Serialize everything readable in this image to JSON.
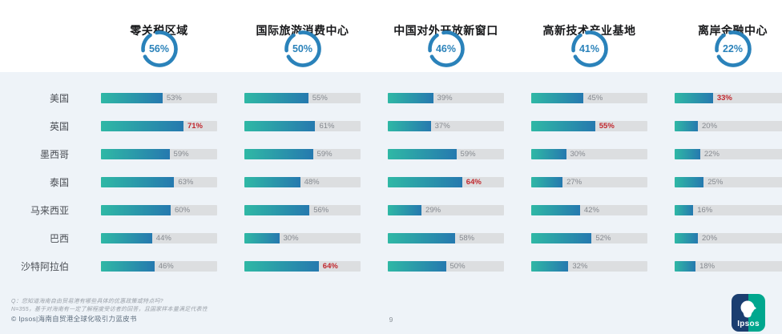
{
  "chart_data": {
    "type": "bar",
    "orientation": "horizontal",
    "unit": "%",
    "xlim": [
      0,
      100
    ],
    "grid": false,
    "legend_position": "none",
    "categories": [
      "美国",
      "英国",
      "墨西哥",
      "泰国",
      "马来西亚",
      "巴西",
      "沙特阿拉伯"
    ],
    "series": [
      {
        "name": "零关税区域",
        "overall_pct": 56,
        "values": [
          53,
          71,
          59,
          63,
          60,
          44,
          46
        ],
        "red_highlight_index": 1
      },
      {
        "name": "国际旅游消费中心",
        "overall_pct": 50,
        "values": [
          55,
          61,
          59,
          48,
          56,
          30,
          64
        ],
        "red_highlight_index": 6
      },
      {
        "name": "中国对外开放新窗口",
        "overall_pct": 46,
        "values": [
          39,
          37,
          59,
          64,
          29,
          58,
          50
        ],
        "red_highlight_index": 3
      },
      {
        "name": "高新技术产业基地",
        "overall_pct": 41,
        "values": [
          45,
          55,
          30,
          27,
          42,
          52,
          32
        ],
        "red_highlight_index": 1
      },
      {
        "name": "离岸金融中心",
        "overall_pct": 22,
        "values": [
          33,
          20,
          22,
          25,
          16,
          20,
          18
        ],
        "red_highlight_index": 0
      }
    ]
  },
  "footer": {
    "question_note": "Q：您知道海南自由贸易港有哪些具体的优惠政策或特点吗?",
    "sample_note": "N=355，基于对海南有一定了解程度受访者的回答，且国家样本量满足代表性",
    "copyright": "© Ipsos|海南自贸港全球化吸引力蓝皮书",
    "page_number": "9"
  },
  "logo": {
    "text": "Ipsos"
  },
  "colors": {
    "accent_blue": "#2a82ba",
    "bar_gradient_start": "#2fb8a5",
    "bar_gradient_end": "#2679af",
    "track_gray": "#dcdee0",
    "red_highlight": "#c1272d",
    "band_background": "#eef3f8"
  }
}
